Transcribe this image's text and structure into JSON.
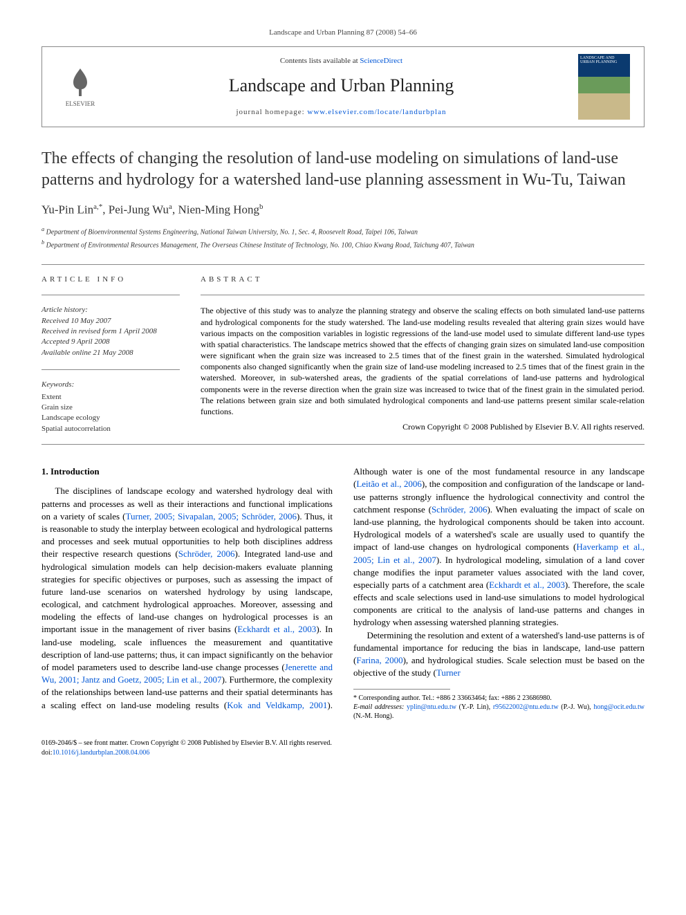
{
  "page_header": "Landscape and Urban Planning 87 (2008) 54–66",
  "journal_box": {
    "contents_prefix": "Contents lists available at ",
    "contents_link": "ScienceDirect",
    "journal_name": "Landscape and Urban Planning",
    "homepage_prefix": "journal homepage: ",
    "homepage_url": "www.elsevier.com/locate/landurbplan",
    "publisher": "ELSEVIER",
    "cover_label": "LANDSCAPE AND URBAN PLANNING"
  },
  "article": {
    "title": "The effects of changing the resolution of land-use modeling on simulations of land-use patterns and hydrology for a watershed land-use planning assessment in Wu-Tu, Taiwan",
    "authors_html": "Yu-Pin Lin<sup>a,*</sup>, Pei-Jung Wu<sup>a</sup>, Nien-Ming Hong<sup>b</sup>",
    "affiliations": [
      "a Department of Bioenvironmental Systems Engineering, National Taiwan University, No. 1, Sec. 4, Roosevelt Road, Taipei 106, Taiwan",
      "b Department of Environmental Resources Management, The Overseas Chinese Institute of Technology, No. 100, Chiao Kwang Road, Taichung 407, Taiwan"
    ]
  },
  "info": {
    "article_info_label": "ARTICLE INFO",
    "abstract_label": "ABSTRACT",
    "history": {
      "label": "Article history:",
      "received": "Received 10 May 2007",
      "revised": "Received in revised form 1 April 2008",
      "accepted": "Accepted 9 April 2008",
      "online": "Available online 21 May 2008"
    },
    "keywords": {
      "label": "Keywords:",
      "items": [
        "Extent",
        "Grain size",
        "Landscape ecology",
        "Spatial autocorrelation"
      ]
    },
    "abstract": "The objective of this study was to analyze the planning strategy and observe the scaling effects on both simulated land-use patterns and hydrological components for the study watershed. The land-use modeling results revealed that altering grain sizes would have various impacts on the composition variables in logistic regressions of the land-use model used to simulate different land-use types with spatial characteristics. The landscape metrics showed that the effects of changing grain sizes on simulated land-use composition were significant when the grain size was increased to 2.5 times that of the finest grain in the watershed. Simulated hydrological components also changed significantly when the grain size of land-use modeling increased to 2.5 times that of the finest grain in the watershed. Moreover, in sub-watershed areas, the gradients of the spatial correlations of land-use patterns and hydrological components were in the reverse direction when the grain size was increased to twice that of the finest grain in the simulated period. The relations between grain size and both simulated hydrological components and land-use patterns present similar scale-relation functions.",
    "copyright": "Crown Copyright © 2008 Published by Elsevier B.V. All rights reserved."
  },
  "body": {
    "heading": "1. Introduction",
    "col1_p1": "The disciplines of landscape ecology and watershed hydrology deal with patterns and processes as well as their interactions and functional implications on a variety of scales (",
    "cite1": "Turner, 2005; Sivapalan, 2005; Schröder, 2006",
    "col1_p1b": "). Thus, it is reasonable to study the interplay between ecological and hydrological patterns and processes and seek mutual opportunities to help both disciplines address their respective research questions (",
    "cite2": "Schröder, 2006",
    "col1_p1c": "). Integrated land-use and hydrological simulation models can help decision-makers evaluate planning strategies for specific objectives or purposes, such as assessing the impact of future land-use scenarios on watershed hydrology by using landscape, ecological, and catchment hydrological approaches. Moreover, assessing and modeling the effects of land-use changes on hydrological processes is an important issue in the management of river basins (",
    "cite3": "Eckhardt et al., 2003",
    "col1_p1d": "). In land-use modeling, scale influences the measurement and quantitative description of land-use patterns; thus, it can impact significantly on the behavior of model parameters used to ",
    "col2_p1a": "describe land-use change processes (",
    "cite4": "Jenerette and Wu, 2001; Jantz and Goetz, 2005; Lin et al., 2007",
    "col2_p1b": "). Furthermore, the complexity of the relationships between land-use patterns and their spatial determinants has a scaling effect on land-use modeling results (",
    "cite5": "Kok and Veldkamp, 2001",
    "col2_p1c": "). Although water is one of the most fundamental resource in any landscape (",
    "cite6": "Leitão et al., 2006",
    "col2_p1d": "), the composition and configuration of the landscape or land-use patterns strongly influence the hydrological connectivity and control the catchment response (",
    "cite7": "Schröder, 2006",
    "col2_p1e": "). When evaluating the impact of scale on land-use planning, the hydrological components should be taken into account. Hydrological models of a watershed's scale are usually used to quantify the impact of land-use changes on hydrological components (",
    "cite8": "Haverkamp et al., 2005; Lin et al., 2007",
    "col2_p1f": "). In hydrological modeling, simulation of a land cover change modifies the input parameter values associated with the land cover, especially parts of a catchment area (",
    "cite9": "Eckhardt et al., 2003",
    "col2_p1g": "). Therefore, the scale effects and scale selections used in land-use simulations to model hydrological components are critical to the analysis of land-use patterns and changes in hydrology when assessing watershed planning strategies.",
    "col2_p2a": "Determining the resolution and extent of a watershed's land-use patterns is of fundamental importance for reducing the bias in landscape, land-use pattern (",
    "cite10": "Farina, 2000",
    "col2_p2b": "), and hydrological studies. Scale selection must be based on the objective of the study (",
    "cite11": "Turner"
  },
  "footnote": {
    "corr": "* Corresponding author. Tel.: +886 2 33663464; fax: +886 2 23686980.",
    "email_label": "E-mail addresses: ",
    "email1": "yplin@ntu.edu.tw",
    "email1_who": " (Y.-P. Lin), ",
    "email2": "r95622002@ntu.edu.tw",
    "email2_who": " (P.-J. Wu), ",
    "email3": "hong@ocit.edu.tw",
    "email3_who": " (N.-M. Hong)."
  },
  "footer": {
    "line1": "0169-2046/$ – see front matter. Crown Copyright © 2008 Published by Elsevier B.V. All rights reserved.",
    "doi_prefix": "doi:",
    "doi": "10.1016/j.landurbplan.2008.04.006"
  },
  "colors": {
    "link": "#0056d6",
    "text": "#000000",
    "rule": "#888888",
    "cover_top": "#0b3a6f",
    "cover_mid": "#6a9b5a",
    "cover_bot": "#c9b98a"
  }
}
